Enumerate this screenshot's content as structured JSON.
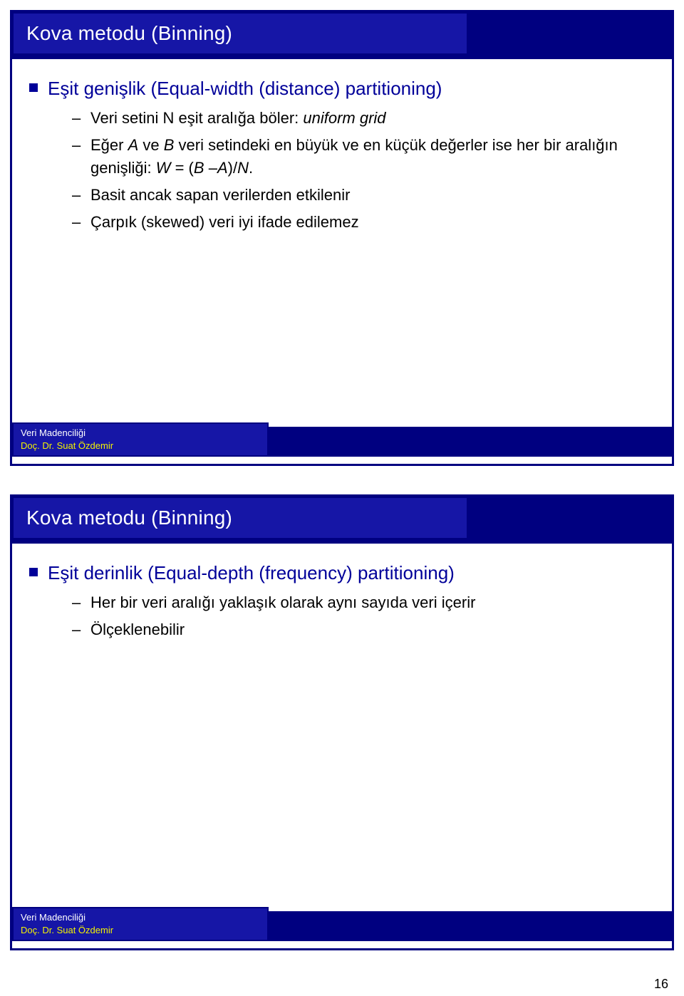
{
  "slide1": {
    "title": "Kova metodu (Binning)",
    "main_bullet": "Eşit genişlik (Equal-width (distance) partitioning)",
    "subs": [
      {
        "pre": "Veri setini N eşit aralığa böler: ",
        "em": "uniform grid"
      },
      {
        "plain_parts": [
          "Eğer ",
          " ve ",
          " veri setindeki en büyük ve en küçük değerler ise her bir aralığın genişliği: ",
          " = (",
          " –",
          ")/",
          "."
        ],
        "ital_parts": [
          "A",
          "B",
          "W",
          "B",
          "A",
          "N"
        ]
      },
      {
        "plain": "Basit ancak sapan verilerden etkilenir"
      },
      {
        "plain": "Çarpık (skewed) veri iyi ifade edilemez"
      }
    ],
    "footer1": "Veri Madenciliği",
    "footer2": "Doç. Dr. Suat Özdemir"
  },
  "slide2": {
    "title": "Kova metodu (Binning)",
    "main_bullet": "Eşit derinlik (Equal-depth (frequency) partitioning)",
    "subs": [
      {
        "plain": "Her bir veri aralığı yaklaşık olarak aynı sayıda veri içerir"
      },
      {
        "plain": "Ölçeklenebilir"
      }
    ],
    "footer1": "Veri Madenciliği",
    "footer2": "Doç. Dr. Suat Özdemir"
  },
  "page_number": "16"
}
